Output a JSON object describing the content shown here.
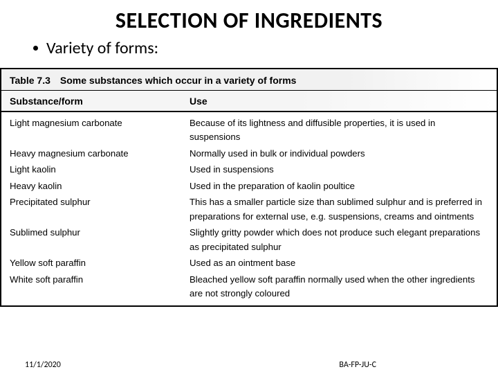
{
  "title": "SELECTION OF INGREDIENTS",
  "subtitle": "Variety of forms:",
  "table": {
    "caption_num": "Table 7.3",
    "caption_text": "Some substances which occur in a variety of forms",
    "columns": {
      "substance": "Substance/form",
      "use": "Use"
    },
    "rows": [
      {
        "substance": "Light magnesium carbonate",
        "use": "Because of its lightness and diffusible properties, it is used in suspensions"
      },
      {
        "substance": "Heavy magnesium carbonate",
        "use": "Normally used in bulk or individual powders"
      },
      {
        "substance": "Light kaolin",
        "use": "Used in suspensions"
      },
      {
        "substance": "Heavy kaolin",
        "use": "Used in the preparation of kaolin poultice"
      },
      {
        "substance": "Precipitated sulphur",
        "use": "This has a smaller particle size than sublimed sulphur and is preferred in preparations for external use, e.g. suspensions, creams and ointments"
      },
      {
        "substance": "Sublimed sulphur",
        "use": "Slightly gritty powder which does not produce such elegant preparations as precipitated sulphur"
      },
      {
        "substance": "Yellow soft paraffin",
        "use": "Used as an ointment base"
      },
      {
        "substance": "White soft paraffin",
        "use": "Bleached yellow soft paraffin normally used when the other ingredients are not strongly coloured"
      }
    ]
  },
  "footer": {
    "date": "11/1/2020",
    "code": "BA-FP-JU-C"
  }
}
